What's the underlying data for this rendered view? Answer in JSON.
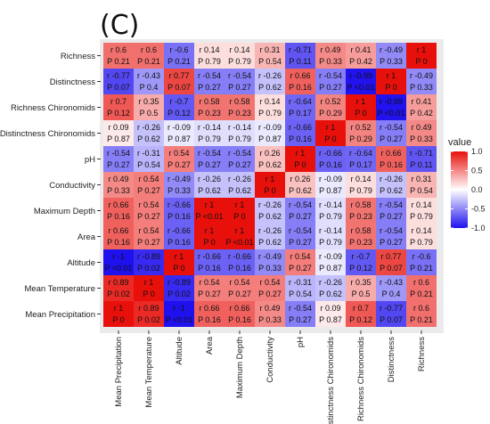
{
  "panel_label": "(C)",
  "chart_data": {
    "type": "heatmap",
    "rows": [
      "Richness",
      "Distinctness",
      "Richness Chironomids",
      "Distinctness Chironomids",
      "pH",
      "Conductivity",
      "Maximum Depth",
      "Area",
      "Altitude",
      "Mean Temperature",
      "Mean Precipitation"
    ],
    "columns": [
      "Mean Precipitation",
      "Mean Temperature",
      "Altitude",
      "Area",
      "Maximum Depth",
      "Conductivity",
      "pH",
      "Distinctness Chironomids",
      "Richness Chironomids",
      "Distinctness",
      "Richness"
    ],
    "r_values": [
      [
        0.6,
        0.6,
        -0.6,
        0.14,
        0.14,
        0.31,
        -0.71,
        0.49,
        0.41,
        -0.49,
        1
      ],
      [
        -0.77,
        -0.43,
        0.77,
        -0.54,
        -0.54,
        -0.26,
        0.66,
        -0.54,
        -0.99,
        1,
        -0.49
      ],
      [
        0.7,
        0.35,
        -0.7,
        0.58,
        0.58,
        0.14,
        -0.64,
        0.52,
        1,
        -0.99,
        0.41
      ],
      [
        0.09,
        -0.26,
        -0.09,
        -0.14,
        -0.14,
        -0.09,
        -0.66,
        1,
        0.52,
        -0.54,
        0.49
      ],
      [
        -0.54,
        -0.31,
        0.54,
        -0.54,
        -0.54,
        0.26,
        1,
        -0.66,
        -0.64,
        0.66,
        -0.71
      ],
      [
        0.49,
        0.54,
        -0.49,
        -0.26,
        -0.26,
        1,
        0.26,
        -0.09,
        0.14,
        -0.26,
        0.31
      ],
      [
        0.66,
        0.54,
        -0.66,
        1,
        1,
        -0.26,
        -0.54,
        -0.14,
        0.58,
        -0.54,
        0.14
      ],
      [
        0.66,
        0.54,
        -0.66,
        1,
        1,
        -0.26,
        -0.54,
        -0.14,
        0.58,
        -0.54,
        0.14
      ],
      [
        -1,
        -0.89,
        1,
        -0.66,
        -0.66,
        -0.49,
        0.54,
        -0.09,
        -0.7,
        0.77,
        -0.6
      ],
      [
        0.89,
        1,
        -0.89,
        0.54,
        0.54,
        0.54,
        -0.31,
        -0.26,
        0.35,
        -0.43,
        0.6
      ],
      [
        1,
        0.89,
        -1,
        0.66,
        0.66,
        0.49,
        -0.54,
        0.09,
        0.7,
        -0.77,
        0.6
      ]
    ],
    "p_values": [
      [
        "0.21",
        "0.21",
        "0.21",
        "0.79",
        "0.79",
        "0.54",
        "0.11",
        "0.33",
        "0.42",
        "0.33",
        "0"
      ],
      [
        "0.07",
        "0.4",
        "0.07",
        "0.27",
        "0.27",
        "0.62",
        "0.16",
        "0.27",
        "<0.01",
        "0",
        "0.33"
      ],
      [
        "0.12",
        "0.5",
        "0.12",
        "0.23",
        "0.23",
        "0.79",
        "0.17",
        "0.29",
        "0",
        "<0.01",
        "0.42"
      ],
      [
        "0.87",
        "0.62",
        "0.87",
        "0.79",
        "0.79",
        "0.87",
        "0.16",
        "0",
        "0.29",
        "0.27",
        "0.33"
      ],
      [
        "0.27",
        "0.54",
        "0.27",
        "0.27",
        "0.27",
        "0.62",
        "0",
        "0.16",
        "0.17",
        "0.16",
        "0.11"
      ],
      [
        "0.33",
        "0.27",
        "0.33",
        "0.62",
        "0.62",
        "0",
        "0.62",
        "0.87",
        "0.79",
        "0.62",
        "0.54"
      ],
      [
        "0.16",
        "0.27",
        "0.16",
        "<0.01",
        "0",
        "0.62",
        "0.27",
        "0.79",
        "0.23",
        "0.27",
        "0.79"
      ],
      [
        "0.16",
        "0.27",
        "0.16",
        "0",
        "<0.01",
        "0.62",
        "0.27",
        "0.79",
        "0.23",
        "0.27",
        "0.79"
      ],
      [
        "<0.01",
        "0.02",
        "0",
        "0.16",
        "0.16",
        "0.33",
        "0.27",
        "0.87",
        "0.12",
        "0.07",
        "0.21"
      ],
      [
        "0.02",
        "0",
        "0.02",
        "0.27",
        "0.27",
        "0.27",
        "0.54",
        "0.62",
        "0.5",
        "0.4",
        "0.21"
      ],
      [
        "0",
        "0.02",
        "<0.01",
        "0.16",
        "0.16",
        "0.33",
        "0.27",
        "0.87",
        "0.12",
        "0.07",
        "0.21"
      ]
    ],
    "legend": {
      "title": "value",
      "ticks": [
        "1.0",
        "0.5",
        "0.0",
        "-0.5",
        "-1.0"
      ],
      "tick_values": [
        1,
        0.5,
        0,
        -0.5,
        -1
      ],
      "range": [
        -1,
        1
      ],
      "colors": {
        "low": "#1f10ee",
        "mid": "#ffffff",
        "high": "#e8100b"
      },
      "placement": "right"
    },
    "grid": false
  }
}
